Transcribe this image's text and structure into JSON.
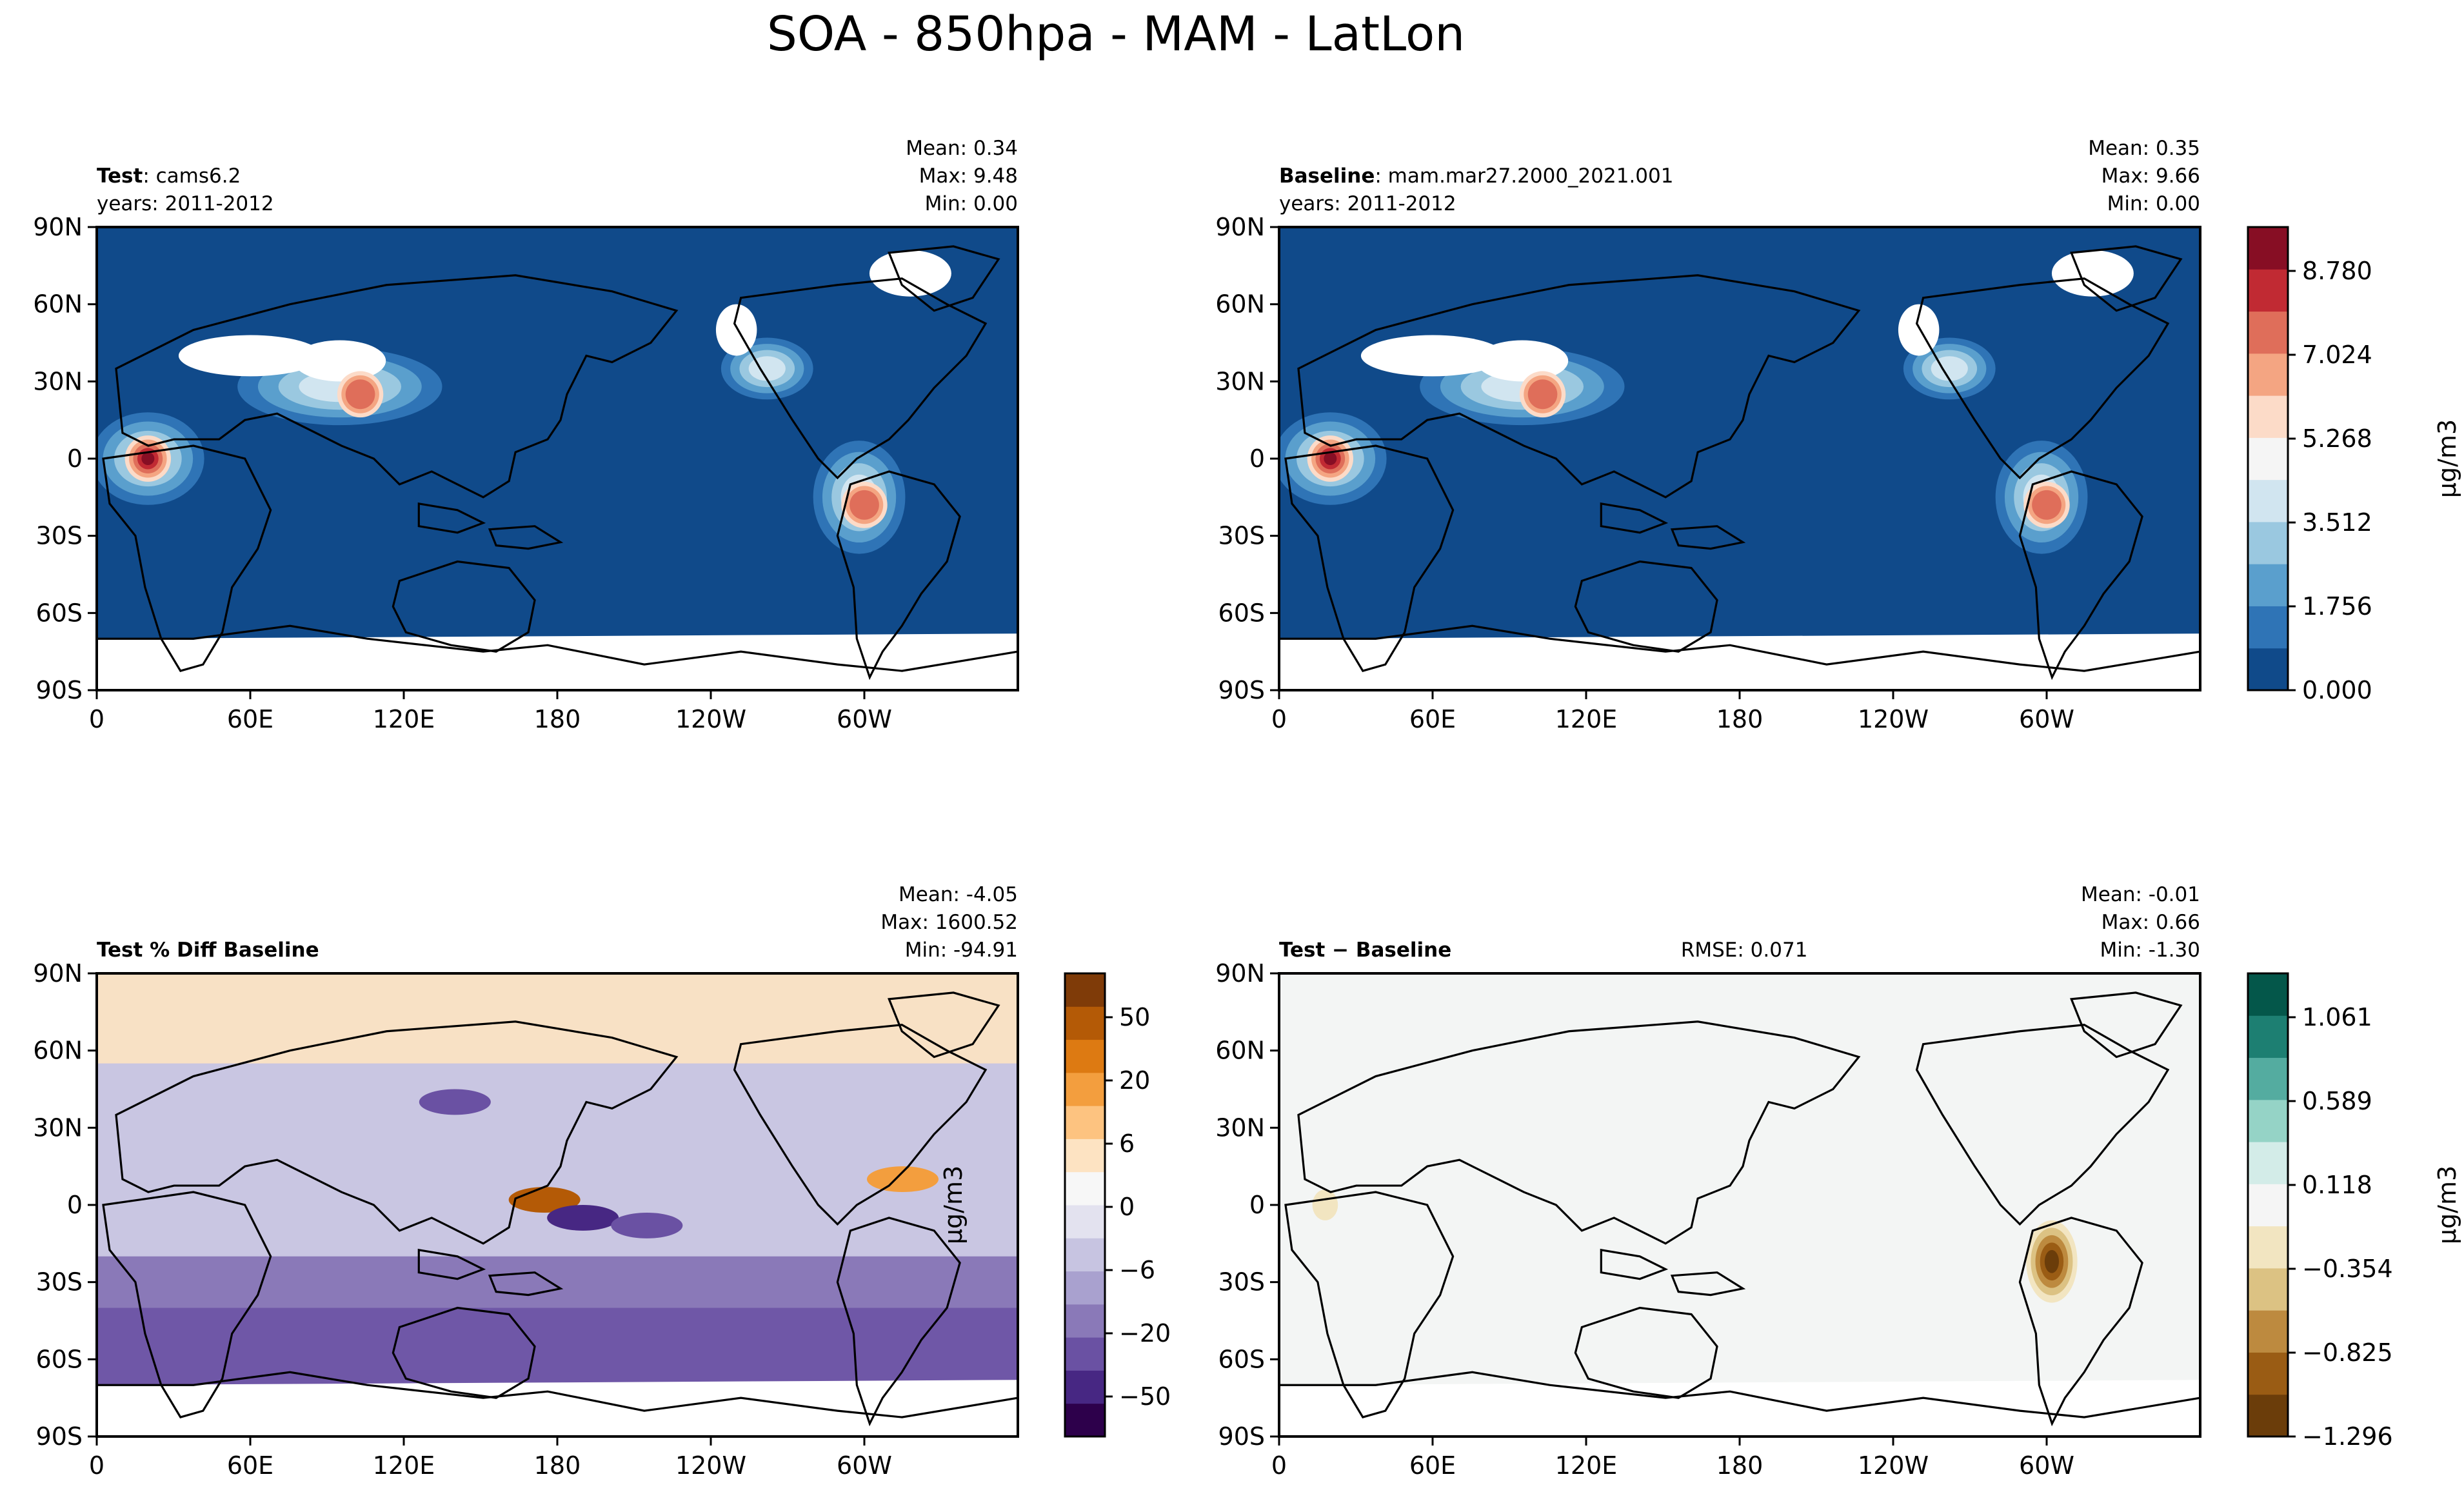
{
  "suptitle": "SOA - 850hpa - MAM - LatLon",
  "chart_data": [
    {
      "type": "heatmap",
      "panel": "test",
      "title_bold": "Test",
      "title_rest": ": cams6.2",
      "years": "years: 2011-2012",
      "stats": [
        "Mean:  0.34",
        "Max:  9.48",
        "Min:  0.00"
      ],
      "xticks": [
        "0",
        "60E",
        "120E",
        "180",
        "120W",
        "60W"
      ],
      "yticks": [
        "90N",
        "60N",
        "30N",
        "0",
        "30S",
        "60S",
        "90S"
      ],
      "colormap": "RdBu_r",
      "hotspots": [
        {
          "lon": 20,
          "lat": 0,
          "value": 9.48
        },
        {
          "lon": 103,
          "lat": 25,
          "value": 6.5
        },
        {
          "lon": 300,
          "lat": -18,
          "value": 5.0
        }
      ]
    },
    {
      "type": "heatmap",
      "panel": "baseline",
      "title_bold": "Baseline",
      "title_rest": ": mam.mar27.2000_2021.001",
      "years": "years: 2011-2012",
      "stats": [
        "Mean:  0.35",
        "Max:  9.66",
        "Min:  0.00"
      ],
      "xticks": [
        "0",
        "60E",
        "120E",
        "180",
        "120W",
        "60W"
      ],
      "yticks": [
        "90N",
        "60N",
        "30N",
        "0",
        "30S",
        "60S",
        "90S"
      ],
      "colormap": "RdBu_r",
      "hotspots": [
        {
          "lon": 20,
          "lat": 0,
          "value": 9.66
        },
        {
          "lon": 103,
          "lat": 25,
          "value": 6.5
        },
        {
          "lon": 300,
          "lat": -18,
          "value": 5.5
        }
      ],
      "colorbar": {
        "ticks": [
          "8.780",
          "7.024",
          "5.268",
          "3.512",
          "1.756",
          "0.000"
        ],
        "label": "μg/m3",
        "colors": [
          "#104a8a",
          "#2f74b6",
          "#5a9fcd",
          "#9ac8e0",
          "#d1e5f0",
          "#f5f5f5",
          "#fcdbc8",
          "#f4a582",
          "#df6e5a",
          "#c12a33",
          "#870e24"
        ]
      }
    },
    {
      "type": "heatmap",
      "panel": "pct-diff",
      "title_bold": "Test % Diff Baseline",
      "stats": [
        "Mean: -4.05",
        "Max: 1600.52",
        "Min: -94.91"
      ],
      "xticks": [
        "0",
        "60E",
        "120E",
        "180",
        "120W",
        "60W"
      ],
      "yticks": [
        "90N",
        "60N",
        "30N",
        "0",
        "30S",
        "60S",
        "90S"
      ],
      "colormap": "PuOr_r",
      "colorbar": {
        "ticks": [
          "50",
          "20",
          "6",
          "0",
          "−6",
          "−20",
          "−50"
        ],
        "label": "μg/m3",
        "colors": [
          "#2d004b",
          "#472783",
          "#6a51a3",
          "#8a79b8",
          "#a9a1cf",
          "#c7c4e1",
          "#e3e2ef",
          "#f7f7f7",
          "#fde3c2",
          "#fdc380",
          "#f39e3e",
          "#dd7a12",
          "#b45a06",
          "#7f3b08"
        ]
      }
    },
    {
      "type": "heatmap",
      "panel": "diff",
      "title_bold": "Test − Baseline",
      "rmse": "RMSE: 0.071",
      "stats": [
        "Mean: -0.01",
        "Max:  0.66",
        "Min: -1.30"
      ],
      "xticks": [
        "0",
        "60E",
        "120E",
        "180",
        "120W",
        "60W"
      ],
      "yticks": [
        "90N",
        "60N",
        "30N",
        "0",
        "30S",
        "60S",
        "90S"
      ],
      "colormap": "BrBG",
      "colorbar": {
        "ticks": [
          "1.061",
          "0.589",
          "0.118",
          "−0.354",
          "−0.825",
          "−1.296"
        ],
        "label": "μg/m3",
        "colors": [
          "#6b3d0a",
          "#9a5c14",
          "#bd8a3f",
          "#dcc283",
          "#f2e5c1",
          "#f5f5f5",
          "#d3ece8",
          "#95d3c6",
          "#54aca0",
          "#1d7f72",
          "#04574a"
        ]
      }
    }
  ]
}
